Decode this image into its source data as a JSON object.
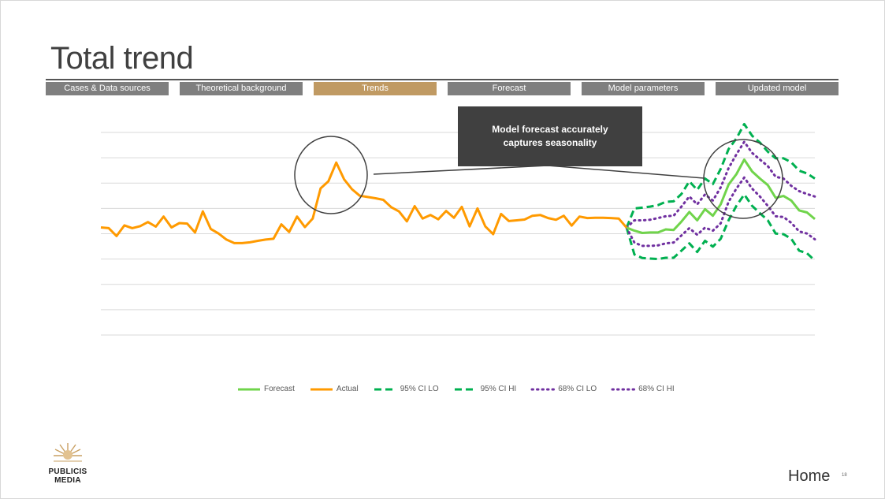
{
  "title": "Total trend",
  "nav": {
    "tabs": [
      {
        "label": "Cases & Data sources",
        "active": false
      },
      {
        "label": "Theoretical background",
        "active": false
      },
      {
        "label": "Trends",
        "active": true
      },
      {
        "label": "Forecast",
        "active": false
      },
      {
        "label": "Model parameters",
        "active": false
      },
      {
        "label": "Updated model",
        "active": false
      }
    ]
  },
  "callout": {
    "line1": "Model forecast accurately",
    "line2": "captures seasonality"
  },
  "chart_data": {
    "type": "line",
    "title": "",
    "xlabel": "",
    "ylabel": "",
    "ylim": [
      0,
      8
    ],
    "grid": true,
    "legend_position": "bottom",
    "axis_labels_shown": false,
    "series": [
      {
        "name": "Actual",
        "color": "#FF9A00",
        "style": "solid",
        "start_index": 0,
        "values": [
          4.25,
          4.22,
          3.91,
          4.33,
          4.22,
          4.3,
          4.46,
          4.28,
          4.68,
          4.25,
          4.42,
          4.4,
          4.05,
          4.88,
          4.19,
          4.01,
          3.77,
          3.63,
          3.63,
          3.66,
          3.72,
          3.77,
          3.8,
          4.37,
          4.07,
          4.68,
          4.26,
          4.6,
          5.79,
          6.07,
          6.81,
          6.15,
          5.76,
          5.5,
          5.45,
          5.4,
          5.34,
          5.05,
          4.88,
          4.49,
          5.09,
          4.6,
          4.74,
          4.57,
          4.9,
          4.63,
          5.06,
          4.29,
          5.0,
          4.29,
          3.98,
          4.78,
          4.5,
          4.53,
          4.56,
          4.71,
          4.74,
          4.62,
          4.55,
          4.71,
          4.32,
          4.68,
          4.62,
          4.63,
          4.63,
          4.62,
          4.6,
          4.24
        ]
      },
      {
        "name": "Forecast",
        "color": "#70D44B",
        "style": "solid",
        "start_index": 67,
        "values": [
          4.24,
          4.12,
          4.03,
          4.05,
          4.05,
          4.17,
          4.15,
          4.48,
          4.86,
          4.53,
          4.97,
          4.71,
          5.16,
          5.94,
          6.35,
          6.93,
          6.46,
          6.18,
          5.92,
          5.42,
          5.49,
          5.31,
          4.92,
          4.84,
          4.58
        ]
      },
      {
        "name": "95% CI LO",
        "color": "#00B050",
        "style": "dashed",
        "start_index": 67,
        "values": [
          4.24,
          3.18,
          3.04,
          3.02,
          3.0,
          3.05,
          3.05,
          3.33,
          3.62,
          3.28,
          3.72,
          3.49,
          3.8,
          4.53,
          5.1,
          5.55,
          5.1,
          4.81,
          4.53,
          4.01,
          3.98,
          3.8,
          3.33,
          3.23,
          2.94
        ]
      },
      {
        "name": "95% CI HI",
        "color": "#00B050",
        "style": "dashed",
        "start_index": 67,
        "values": [
          4.24,
          5.0,
          5.03,
          5.07,
          5.13,
          5.26,
          5.28,
          5.57,
          6.07,
          5.73,
          6.18,
          5.96,
          6.56,
          7.34,
          7.76,
          8.33,
          7.87,
          7.6,
          7.24,
          6.98,
          6.98,
          6.82,
          6.49,
          6.38,
          6.18
        ]
      },
      {
        "name": "68% CI LO",
        "color": "#7030A0",
        "style": "dotted",
        "start_index": 67,
        "values": [
          4.24,
          3.65,
          3.52,
          3.52,
          3.54,
          3.62,
          3.65,
          3.93,
          4.22,
          3.96,
          4.24,
          4.12,
          4.41,
          5.26,
          5.78,
          6.22,
          5.78,
          5.47,
          5.1,
          4.69,
          4.66,
          4.43,
          4.09,
          4.01,
          3.78
        ]
      },
      {
        "name": "68% CI HI",
        "color": "#7030A0",
        "style": "dotted",
        "start_index": 67,
        "values": [
          4.24,
          4.53,
          4.53,
          4.55,
          4.62,
          4.69,
          4.71,
          5.07,
          5.47,
          5.16,
          5.55,
          5.31,
          5.83,
          6.59,
          7.13,
          7.63,
          7.19,
          6.93,
          6.67,
          6.25,
          6.18,
          5.89,
          5.68,
          5.57,
          5.47
        ]
      }
    ],
    "legend_order": [
      "Forecast",
      "Actual",
      "95% CI LO",
      "95% CI HI",
      "68% CI LO",
      "68% CI HI"
    ]
  },
  "logo": {
    "line1": "PUBLICIS",
    "line2": "MEDIA"
  },
  "footer": {
    "home_label": "Home",
    "page_number": "18"
  }
}
